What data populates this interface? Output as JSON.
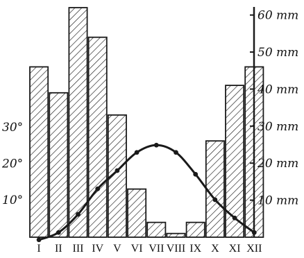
{
  "chart_data": {
    "type": "bar",
    "title": "",
    "categories": [
      "I",
      "II",
      "III",
      "IV",
      "V",
      "VI",
      "VII",
      "VIII",
      "IX",
      "X",
      "XI",
      "XII"
    ],
    "series": [
      {
        "type": "bar",
        "axis": "right",
        "unit": "mm",
        "values": [
          46,
          39,
          62,
          54,
          33,
          13,
          4,
          1,
          4,
          26,
          41,
          46
        ]
      },
      {
        "type": "line",
        "axis": "left",
        "unit": "°",
        "values": [
          -1,
          1,
          6,
          13,
          18,
          23,
          25,
          23,
          17,
          10,
          5,
          1
        ]
      }
    ],
    "right_axis": {
      "ticks": [
        "10 mm",
        "20 mm",
        "30 mm",
        "40 mm",
        "50 mm",
        "60 mm"
      ],
      "range": [
        0,
        62
      ]
    },
    "left_axis": {
      "ticks": [
        "10°",
        "20°",
        "30°"
      ],
      "range": [
        -1.1,
        35
      ]
    },
    "grid": false,
    "legend": "none",
    "colors": {
      "bar_fill_hatch": "#1a1a1a",
      "line": "#1a1a1a",
      "background": "#ffffff"
    }
  }
}
